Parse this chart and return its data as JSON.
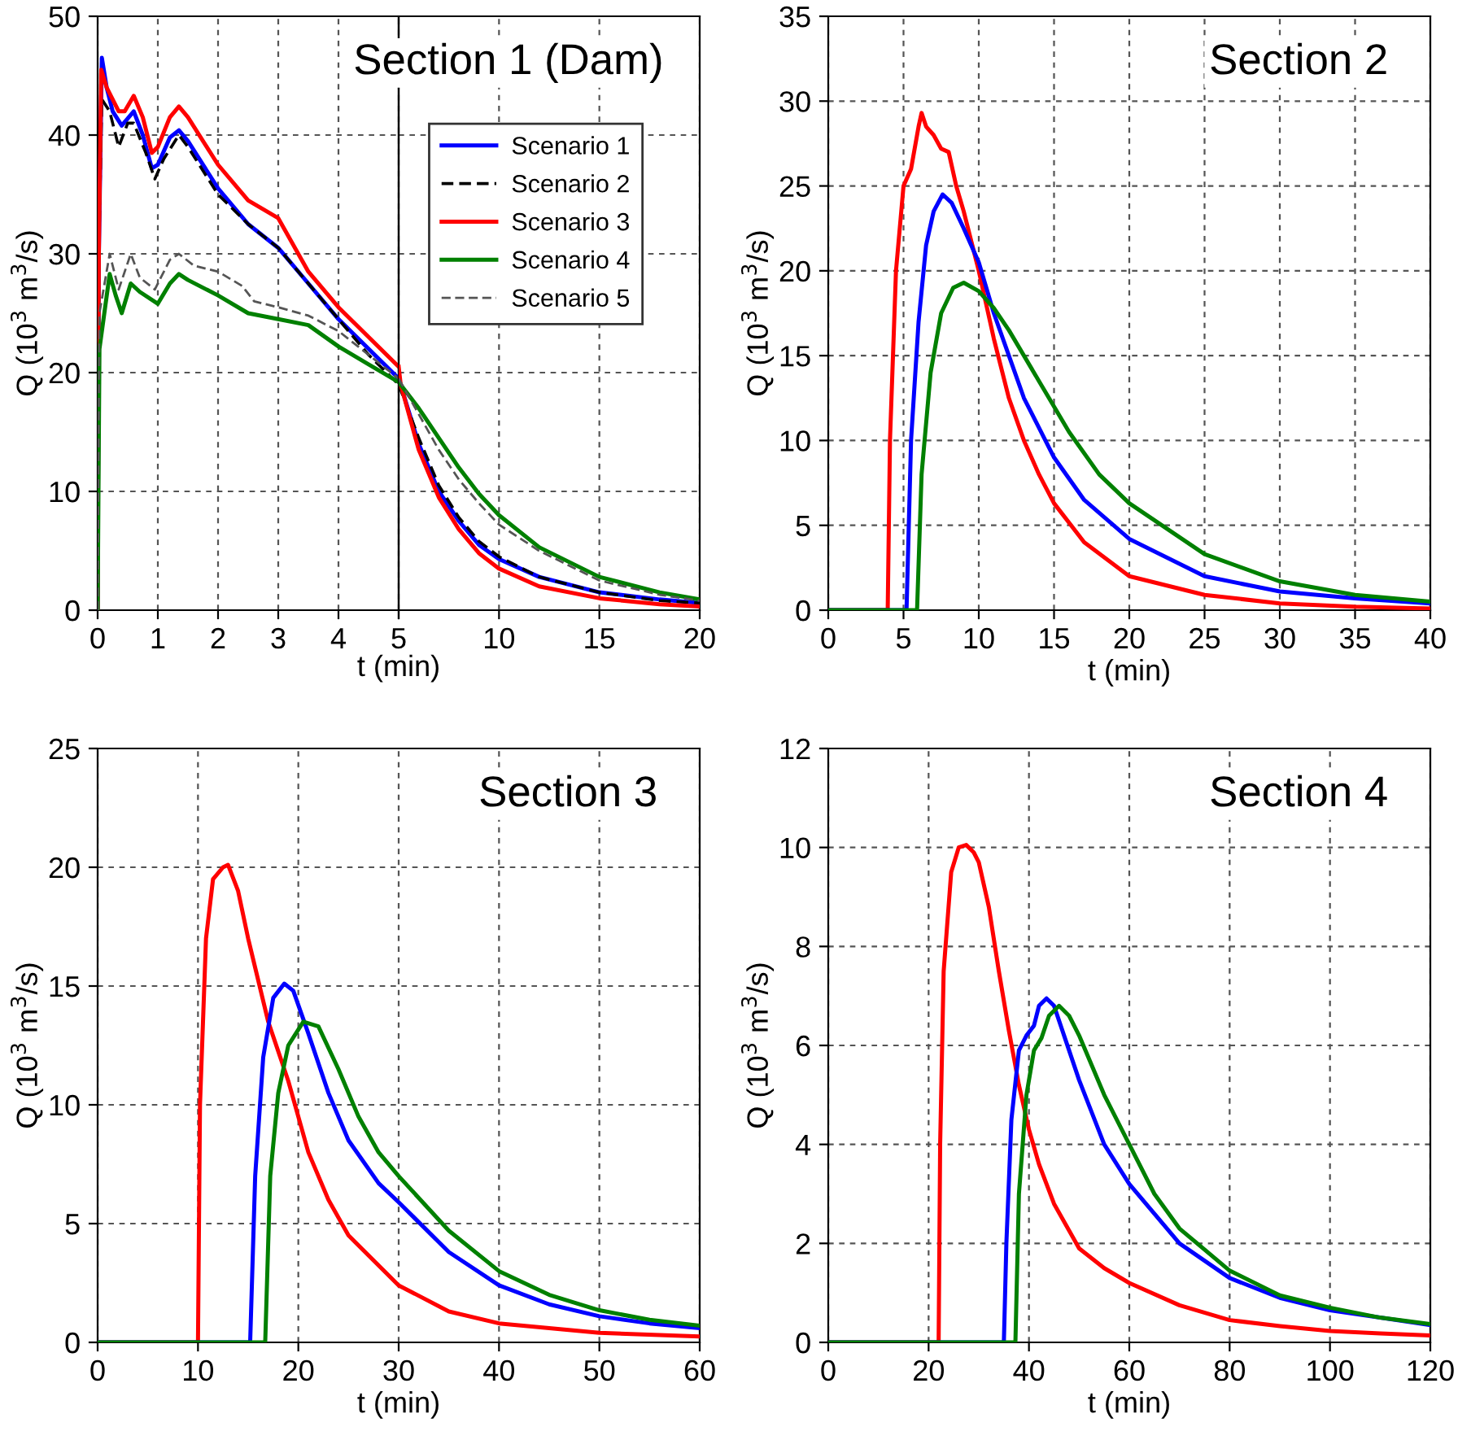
{
  "chart_data": [
    {
      "type": "line",
      "ylabel": "Q (10$^{3}$ m$^{3}$/s)",
      "xlim": [
        0,
        5
      ],
      "ylim": [
        0,
        50
      ],
      "xticks": [
        0,
        1,
        2,
        3,
        4,
        5
      ],
      "yticks": [
        0,
        10,
        20,
        30,
        40,
        50
      ],
      "grid": true,
      "series": [
        {
          "color": "#0000ff",
          "line_style": "solid",
          "x": [
            0,
            0.02,
            0.07,
            0.15,
            0.25,
            0.4,
            0.6,
            0.75,
            0.9,
            1.0,
            1.2,
            1.35,
            1.5,
            2.0,
            2.5,
            3.0,
            3.5,
            4.0,
            4.5,
            5.0
          ],
          "values": [
            0,
            30,
            46.5,
            44,
            42,
            40.8,
            42,
            40,
            37.2,
            37.5,
            39.8,
            40.4,
            39.5,
            35.5,
            32.5,
            30.5,
            27.5,
            24.5,
            22,
            19.5
          ]
        },
        {
          "color": "#000000",
          "line_style": "dashed",
          "x": [
            0,
            0.02,
            0.07,
            0.2,
            0.35,
            0.5,
            0.6,
            0.8,
            0.95,
            1.1,
            1.35,
            1.5,
            2.0,
            2.5,
            3,
            3.5,
            4,
            4.5,
            5
          ],
          "values": [
            0,
            30,
            43,
            42,
            39,
            41,
            41,
            38.5,
            36.3,
            38,
            40,
            39,
            35,
            32.5,
            30.5,
            27.5,
            24.5,
            21.5,
            19
          ]
        },
        {
          "color": "#ff0000",
          "line_style": "solid",
          "x": [
            0,
            0.02,
            0.06,
            0.15,
            0.35,
            0.45,
            0.6,
            0.75,
            0.9,
            1.0,
            1.2,
            1.35,
            1.5,
            2.0,
            2.5,
            3.0,
            3.5,
            4.0,
            4.5,
            5.0
          ],
          "values": [
            0,
            30,
            45.5,
            44,
            42,
            42,
            43.3,
            41.5,
            38.5,
            39,
            41.5,
            42.4,
            41.5,
            37.5,
            34.5,
            33,
            28.5,
            25.5,
            23,
            20.5
          ]
        },
        {
          "color": "#008000",
          "line_style": "solid",
          "x": [
            0,
            0.03,
            0.2,
            0.3,
            0.4,
            0.55,
            0.7,
            1.0,
            1.2,
            1.35,
            1.5,
            2.0,
            2.5,
            3.0,
            3.5,
            4.0,
            4.5,
            5
          ],
          "values": [
            0,
            22,
            28.3,
            26.5,
            25,
            27.5,
            26.8,
            25.8,
            27.5,
            28.3,
            27.8,
            26.5,
            25,
            24.5,
            24,
            22.2,
            20.7,
            19.2
          ]
        },
        {
          "color": "#555555",
          "line_style": "dashed",
          "x": [
            0,
            0.03,
            0.2,
            0.35,
            0.55,
            0.7,
            0.95,
            1.2,
            1.35,
            1.6,
            2,
            2.4,
            2.6,
            3,
            3.5,
            4,
            4.5,
            5
          ],
          "values": [
            0,
            25,
            30,
            27,
            30,
            28,
            27,
            29.5,
            30,
            29,
            28.5,
            27.3,
            26,
            25.5,
            24.8,
            23.5,
            21.5,
            19.5
          ]
        }
      ]
    },
    {
      "type": "line",
      "title": "Section 1 (Dam)",
      "xlabel": "t (min)",
      "xlim": [
        5,
        20
      ],
      "ylim": [
        0,
        50
      ],
      "xticks": [
        {
          "value": 5,
          "label": null
        },
        10,
        15,
        20
      ],
      "yticks": [
        {
          "value": 0,
          "label": null
        },
        {
          "value": 10,
          "label": null
        },
        {
          "value": 20,
          "label": null
        },
        {
          "value": 30,
          "label": null
        },
        {
          "value": 40,
          "label": null
        },
        {
          "value": 50,
          "label": null
        }
      ],
      "grid": true,
      "legend": "top left",
      "tick_labels": "x",
      "series": [
        {
          "name": "Scenario 1",
          "color": "#0000ff",
          "line_style": "solid",
          "x": [
            5,
            6,
            7,
            8,
            9,
            10,
            12,
            15,
            18,
            20
          ],
          "values": [
            19.5,
            14,
            10,
            7.5,
            5.5,
            4.3,
            2.8,
            1.5,
            0.9,
            0.6
          ]
        },
        {
          "name": "Scenario 2",
          "color": "#000000",
          "line_style": "dashed",
          "x": [
            5,
            6,
            7,
            8,
            9,
            10,
            12,
            15,
            18,
            20
          ],
          "values": [
            19,
            14.5,
            10.5,
            7.8,
            5.8,
            4.5,
            2.8,
            1.5,
            0.8,
            0.6
          ]
        },
        {
          "name": "Scenario 3",
          "color": "#ff0000",
          "line_style": "solid",
          "x": [
            5,
            5.1,
            6,
            7,
            8,
            9,
            10,
            12,
            15,
            18,
            20
          ],
          "values": [
            20.5,
            19,
            13.5,
            9.5,
            6.8,
            4.8,
            3.5,
            2,
            1,
            0.5,
            0.3
          ]
        },
        {
          "name": "Scenario 4",
          "color": "#008000",
          "line_style": "solid",
          "x": [
            5,
            6,
            7,
            8,
            9,
            10,
            12,
            15,
            18,
            20
          ],
          "values": [
            19.2,
            17,
            14.5,
            12,
            9.8,
            8,
            5.3,
            2.8,
            1.5,
            0.9
          ]
        },
        {
          "name": "Scenario 5",
          "color": "#555555",
          "line_style": "dashed",
          "x": [
            5,
            6,
            7,
            8,
            9,
            10,
            12,
            15,
            18,
            20
          ],
          "values": [
            19.5,
            16.5,
            13.5,
            11,
            9,
            7.2,
            5,
            2.5,
            1.3,
            0.8
          ]
        }
      ]
    },
    {
      "type": "line",
      "title": "Section 2",
      "xlabel": "t (min)",
      "ylabel": "Q (10$^{3}$ m$^{3}$/s)",
      "xlim": [
        0,
        40
      ],
      "ylim": [
        0,
        35
      ],
      "xticks": [
        0,
        5,
        10,
        15,
        20,
        25,
        30,
        35,
        40
      ],
      "yticks": [
        0,
        5,
        10,
        15,
        20,
        25,
        30,
        35
      ],
      "grid": true,
      "series": [
        {
          "color": "#ff0000",
          "x": [
            0,
            3.95,
            4.1,
            4.5,
            5,
            5.5,
            6,
            6.2,
            6.5,
            7,
            7.5,
            8,
            8.5,
            9,
            10,
            11,
            12,
            13,
            14,
            15,
            17,
            20,
            25,
            30,
            35,
            40
          ],
          "values": [
            0,
            0,
            10,
            20,
            25,
            26,
            28.5,
            29.3,
            28.5,
            28,
            27.2,
            27,
            25,
            23.5,
            20,
            16,
            12.5,
            10,
            8,
            6.3,
            4,
            2,
            0.9,
            0.4,
            0.2,
            0.1
          ]
        },
        {
          "color": "#0000ff",
          "x": [
            0,
            5.2,
            5.5,
            6,
            6.5,
            7,
            7.6,
            8.2,
            9,
            10,
            11,
            12,
            13,
            15,
            17,
            20,
            25,
            30,
            35,
            40
          ],
          "values": [
            0,
            0,
            10,
            17,
            21.5,
            23.5,
            24.5,
            24,
            22.5,
            20.5,
            17.5,
            15,
            12.5,
            9,
            6.5,
            4.2,
            2,
            1.1,
            0.7,
            0.4
          ]
        },
        {
          "color": "#008000",
          "x": [
            0,
            5.9,
            6.2,
            6.8,
            7.5,
            8.3,
            9,
            10,
            11,
            12,
            14,
            16,
            18,
            20,
            25,
            30,
            35,
            40
          ],
          "values": [
            0,
            0,
            8,
            14,
            17.5,
            19,
            19.3,
            18.8,
            17.8,
            16.5,
            13.5,
            10.5,
            8,
            6.3,
            3.3,
            1.7,
            0.9,
            0.5
          ]
        }
      ]
    },
    {
      "type": "line",
      "title": "Section 3",
      "xlabel": "t (min)",
      "ylabel": "Q (10$^{3}$ m$^{3}$/s)",
      "xlim": [
        0,
        60
      ],
      "ylim": [
        0,
        25
      ],
      "xticks": [
        0,
        10,
        20,
        30,
        40,
        50,
        60
      ],
      "yticks": [
        0,
        5,
        10,
        15,
        20,
        25
      ],
      "grid": true,
      "series": [
        {
          "color": "#ff0000",
          "x": [
            0,
            10,
            10.2,
            10.8,
            11.5,
            12.5,
            13,
            14,
            15,
            17,
            19,
            21,
            23,
            25,
            30,
            35,
            40,
            50,
            60
          ],
          "values": [
            0,
            0,
            10,
            17,
            19.5,
            20,
            20.1,
            19,
            17,
            13.5,
            11,
            8,
            6,
            4.5,
            2.4,
            1.3,
            0.8,
            0.4,
            0.25
          ]
        },
        {
          "color": "#0000ff",
          "x": [
            0,
            15.2,
            15.7,
            16.5,
            17.5,
            18.6,
            19.5,
            21,
            23,
            25,
            28,
            30,
            35,
            40,
            45,
            50,
            55,
            60
          ],
          "values": [
            0,
            0,
            7,
            12,
            14.5,
            15.1,
            14.8,
            13,
            10.5,
            8.5,
            6.7,
            5.9,
            3.8,
            2.4,
            1.6,
            1.1,
            0.8,
            0.6
          ]
        },
        {
          "color": "#008000",
          "x": [
            0,
            16.7,
            17.2,
            18,
            19,
            20.5,
            22,
            24,
            26,
            28,
            30,
            35,
            40,
            45,
            50,
            55,
            60
          ],
          "values": [
            0,
            0,
            7,
            10.5,
            12.5,
            13.5,
            13.3,
            11.5,
            9.5,
            8,
            7,
            4.7,
            3,
            2,
            1.35,
            0.95,
            0.7
          ]
        }
      ]
    },
    {
      "type": "line",
      "title": "Section 4",
      "xlabel": "t (min)",
      "ylabel": "Q (10$^{3}$ m$^{3}$/s)",
      "xlim": [
        0,
        120
      ],
      "ylim": [
        0,
        12
      ],
      "xticks": [
        0,
        20,
        40,
        60,
        80,
        100,
        120
      ],
      "yticks": [
        0,
        2,
        4,
        6,
        8,
        10,
        12
      ],
      "grid": true,
      "series": [
        {
          "color": "#ff0000",
          "x": [
            0,
            22,
            22.3,
            23,
            24.5,
            26,
            27.5,
            29,
            30,
            32,
            34,
            36,
            38,
            40,
            42,
            45,
            50,
            55,
            60,
            70,
            80,
            90,
            100,
            110,
            120
          ],
          "values": [
            0,
            0,
            4,
            7.5,
            9.5,
            10,
            10.05,
            9.9,
            9.7,
            8.8,
            7.5,
            6.3,
            5.2,
            4.3,
            3.6,
            2.8,
            1.9,
            1.5,
            1.2,
            0.75,
            0.45,
            0.33,
            0.23,
            0.18,
            0.14
          ]
        },
        {
          "color": "#0000ff",
          "x": [
            0,
            35,
            35.5,
            36.5,
            38,
            39.5,
            41,
            42,
            43.5,
            45,
            47,
            50,
            55,
            60,
            65,
            70,
            80,
            90,
            100,
            110,
            120
          ],
          "values": [
            0,
            0,
            2,
            4.5,
            5.9,
            6.2,
            6.4,
            6.8,
            6.95,
            6.8,
            6.2,
            5.3,
            4,
            3.2,
            2.6,
            2.0,
            1.3,
            0.9,
            0.65,
            0.5,
            0.35
          ]
        },
        {
          "color": "#008000",
          "x": [
            0,
            37.3,
            38,
            39.5,
            41,
            42.5,
            44,
            46,
            48,
            50,
            55,
            60,
            65,
            70,
            80,
            90,
            100,
            110,
            120
          ],
          "values": [
            0,
            0,
            3,
            5,
            5.9,
            6.15,
            6.6,
            6.8,
            6.6,
            6.2,
            5,
            4,
            3,
            2.3,
            1.45,
            0.95,
            0.7,
            0.5,
            0.37
          ]
        }
      ]
    }
  ]
}
